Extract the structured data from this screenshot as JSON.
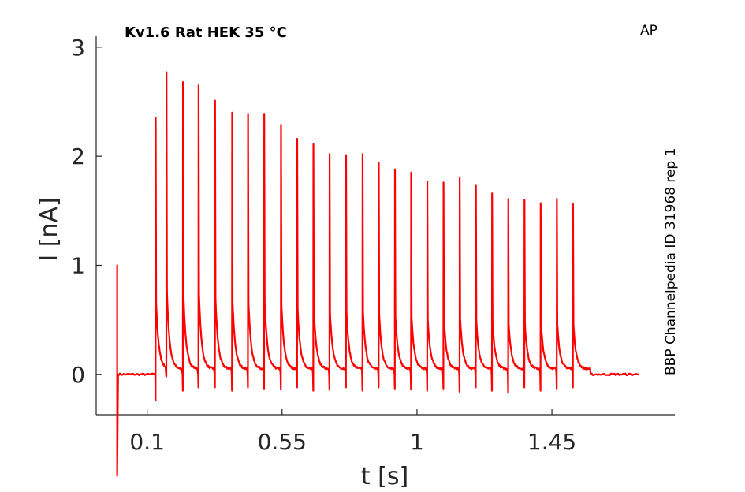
{
  "chart_data": {
    "type": "line",
    "title": "Kv1.6  Rat  HEK  35 °C",
    "corner_label": "AP",
    "side_label": "BBP Channelpedia ID 31968 rep 1",
    "xlabel": "t [s]",
    "ylabel": "I [nA]",
    "xlim": [
      -0.07,
      1.86
    ],
    "ylim": [
      -0.37,
      3.1
    ],
    "xticks": [
      0.1,
      0.55,
      1,
      1.45
    ],
    "xtick_labels": [
      "0.1",
      "0.55",
      "1",
      "1.45"
    ],
    "yticks": [
      0,
      1,
      2,
      3
    ],
    "ytick_labels": [
      "0",
      "1",
      "2",
      "3"
    ],
    "grid": false,
    "series": [
      {
        "color": "#ff0000",
        "baseline": 0.0,
        "trace_end": 1.74,
        "initial_artifact": {
          "t": 0.0,
          "max": 1.0,
          "min": -0.93
        },
        "spikes": [
          {
            "t": 0.128,
            "peak": 2.35,
            "undershoot": -0.24
          },
          {
            "t": 0.164,
            "peak": 2.77,
            "undershoot": -0.02
          },
          {
            "t": 0.219,
            "peak": 2.68,
            "undershoot": -0.15
          },
          {
            "t": 0.271,
            "peak": 2.65,
            "undershoot": -0.12
          },
          {
            "t": 0.326,
            "peak": 2.51,
            "undershoot": -0.12
          },
          {
            "t": 0.383,
            "peak": 2.4,
            "undershoot": -0.15
          },
          {
            "t": 0.436,
            "peak": 2.39,
            "undershoot": -0.12
          },
          {
            "t": 0.49,
            "peak": 2.39,
            "undershoot": -0.13
          },
          {
            "t": 0.546,
            "peak": 2.29,
            "undershoot": -0.14
          },
          {
            "t": 0.6,
            "peak": 2.16,
            "undershoot": -0.12
          },
          {
            "t": 0.654,
            "peak": 2.11,
            "undershoot": -0.15
          },
          {
            "t": 0.708,
            "peak": 2.02,
            "undershoot": -0.14
          },
          {
            "t": 0.763,
            "peak": 2.01,
            "undershoot": -0.12
          },
          {
            "t": 0.818,
            "peak": 2.02,
            "undershoot": -0.15
          },
          {
            "t": 0.872,
            "peak": 1.94,
            "undershoot": -0.12
          },
          {
            "t": 0.926,
            "peak": 1.88,
            "undershoot": -0.13
          },
          {
            "t": 0.98,
            "peak": 1.85,
            "undershoot": -0.14
          },
          {
            "t": 1.034,
            "peak": 1.77,
            "undershoot": -0.15
          },
          {
            "t": 1.088,
            "peak": 1.76,
            "undershoot": -0.13
          },
          {
            "t": 1.142,
            "peak": 1.8,
            "undershoot": -0.16
          },
          {
            "t": 1.196,
            "peak": 1.73,
            "undershoot": -0.12
          },
          {
            "t": 1.25,
            "peak": 1.66,
            "undershoot": -0.15
          },
          {
            "t": 1.304,
            "peak": 1.61,
            "undershoot": -0.17
          },
          {
            "t": 1.358,
            "peak": 1.6,
            "undershoot": -0.12
          },
          {
            "t": 1.412,
            "peak": 1.57,
            "undershoot": -0.15
          },
          {
            "t": 1.466,
            "peak": 1.61,
            "undershoot": -0.13
          },
          {
            "t": 1.52,
            "peak": 1.56,
            "undershoot": -0.12
          }
        ]
      }
    ]
  }
}
